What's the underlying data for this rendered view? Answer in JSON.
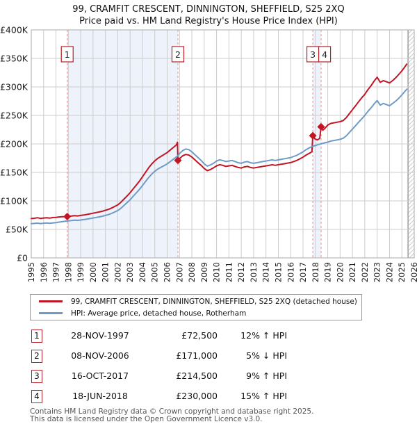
{
  "title": {
    "line1": "99, CRAMFIT CRESCENT, DINNINGTON, SHEFFIELD, S25 2XQ",
    "line2": "Price paid vs. HM Land Registry's House Price Index (HPI)"
  },
  "colors": {
    "property_line": "#c11425",
    "hpi_line": "#6d9bc7",
    "grid": "#cccccc",
    "plot_border": "#aaaaaa",
    "ownership_band": "#eef2fa",
    "marker_dash_line": "#f38b84",
    "marker_box_border": "#b42025",
    "hatch_stroke": "#c6cad0",
    "hatch_edge": "#8e8e8e",
    "axis_text": "#222222"
  },
  "chart_data": {
    "type": "line",
    "title": "Price paid vs. HM Land Registry's House Price Index (HPI)",
    "units": "GBP thousands",
    "x_range": [
      1995,
      2026
    ],
    "y_range": [
      0,
      400
    ],
    "grid": true,
    "legend_position": "bottom",
    "x_ticks": [
      1995,
      1996,
      1997,
      1998,
      1999,
      2000,
      2001,
      2002,
      2003,
      2004,
      2005,
      2006,
      2007,
      2008,
      2009,
      2010,
      2011,
      2012,
      2013,
      2014,
      2015,
      2016,
      2017,
      2018,
      2019,
      2020,
      2021,
      2022,
      2023,
      2024,
      2025,
      2026
    ],
    "y_ticks": [
      0,
      50,
      100,
      150,
      200,
      250,
      300,
      350,
      400
    ],
    "y_tick_labels": [
      "£0",
      "£50K",
      "£100K",
      "£150K",
      "£200K",
      "£250K",
      "£300K",
      "£350K",
      "£400K"
    ],
    "shaded_bands": [
      [
        1997.91,
        2006.87
      ],
      [
        2017.79,
        2018.46
      ]
    ],
    "hatch_from": 2025.5,
    "sale_markers": [
      {
        "label": "1",
        "x": 1997.91,
        "y": 72.5
      },
      {
        "label": "2",
        "x": 2006.87,
        "y": 171
      },
      {
        "label": "3",
        "x": 2017.79,
        "y": 214.5
      },
      {
        "label": "4",
        "x": 2018.46,
        "y": 230
      }
    ],
    "series": [
      {
        "name": "99, CRAMFIT CRESCENT, DINNINGTON, SHEFFIELD, S25 2XQ (detached house)",
        "color_key": "property_line",
        "points": [
          [
            1995,
            69
          ],
          [
            1995.25,
            69.5
          ],
          [
            1995.5,
            70.5
          ],
          [
            1995.75,
            69.3
          ],
          [
            1996,
            70
          ],
          [
            1996.25,
            70.5
          ],
          [
            1996.5,
            69.8
          ],
          [
            1996.75,
            70.8
          ],
          [
            1997,
            71
          ],
          [
            1997.25,
            71.8
          ],
          [
            1997.5,
            72.2
          ],
          [
            1997.91,
            72.5
          ],
          [
            1998.25,
            73.4
          ],
          [
            1998.5,
            74.2
          ],
          [
            1998.75,
            73.7
          ],
          [
            1999,
            74.5
          ],
          [
            1999.25,
            75.3
          ],
          [
            1999.5,
            76.2
          ],
          [
            1999.75,
            77.3
          ],
          [
            2000,
            78.4
          ],
          [
            2000.25,
            79.5
          ],
          [
            2000.5,
            80.6
          ],
          [
            2000.75,
            81.8
          ],
          [
            2001,
            83.5
          ],
          [
            2001.25,
            85.1
          ],
          [
            2001.5,
            87.4
          ],
          [
            2001.75,
            90.2
          ],
          [
            2002,
            93
          ],
          [
            2002.25,
            97.5
          ],
          [
            2002.5,
            103
          ],
          [
            2002.75,
            108.7
          ],
          [
            2003,
            114.3
          ],
          [
            2003.25,
            121
          ],
          [
            2003.5,
            127.7
          ],
          [
            2003.75,
            134.4
          ],
          [
            2004,
            142.3
          ],
          [
            2004.25,
            150.1
          ],
          [
            2004.5,
            158
          ],
          [
            2004.75,
            164.7
          ],
          [
            2005,
            170.3
          ],
          [
            2005.25,
            174.8
          ],
          [
            2005.5,
            178.1
          ],
          [
            2005.75,
            181.5
          ],
          [
            2006,
            184.8
          ],
          [
            2006.25,
            189.3
          ],
          [
            2006.5,
            193.8
          ],
          [
            2006.75,
            198.3
          ],
          [
            2006.84,
            203
          ],
          [
            2006.87,
            171
          ],
          [
            2007,
            174
          ],
          [
            2007.25,
            179
          ],
          [
            2007.5,
            181.5
          ],
          [
            2007.75,
            180.5
          ],
          [
            2008,
            177
          ],
          [
            2008.25,
            172
          ],
          [
            2008.5,
            167
          ],
          [
            2008.75,
            162.5
          ],
          [
            2009,
            157
          ],
          [
            2009.25,
            153
          ],
          [
            2009.5,
            155
          ],
          [
            2009.75,
            158
          ],
          [
            2010,
            161.5
          ],
          [
            2010.25,
            163.5
          ],
          [
            2010.5,
            162.5
          ],
          [
            2010.75,
            160.5
          ],
          [
            2011,
            161.5
          ],
          [
            2011.25,
            162.5
          ],
          [
            2011.5,
            160.5
          ],
          [
            2011.75,
            158.7
          ],
          [
            2012,
            157.7
          ],
          [
            2012.25,
            159.6
          ],
          [
            2012.5,
            160.6
          ],
          [
            2012.75,
            158.7
          ],
          [
            2013,
            157.7
          ],
          [
            2013.25,
            158.7
          ],
          [
            2013.5,
            159.6
          ],
          [
            2013.75,
            160.6
          ],
          [
            2014,
            161.5
          ],
          [
            2014.25,
            162.5
          ],
          [
            2014.5,
            163.4
          ],
          [
            2014.75,
            162.5
          ],
          [
            2015,
            163.4
          ],
          [
            2015.25,
            164.4
          ],
          [
            2015.5,
            165.3
          ],
          [
            2015.75,
            166.3
          ],
          [
            2016,
            167.2
          ],
          [
            2016.25,
            169.1
          ],
          [
            2016.5,
            171
          ],
          [
            2016.75,
            173.9
          ],
          [
            2017,
            176.7
          ],
          [
            2017.25,
            180.5
          ],
          [
            2017.5,
            183.4
          ],
          [
            2017.72,
            186.2
          ],
          [
            2017.79,
            214.5
          ],
          [
            2017.95,
            209
          ],
          [
            2018.15,
            207
          ],
          [
            2018.35,
            209.5
          ],
          [
            2018.46,
            230
          ],
          [
            2018.6,
            224
          ],
          [
            2018.75,
            227
          ],
          [
            2019,
            233
          ],
          [
            2019.25,
            236
          ],
          [
            2019.5,
            237
          ],
          [
            2019.75,
            238
          ],
          [
            2020,
            239
          ],
          [
            2020.25,
            241
          ],
          [
            2020.5,
            246
          ],
          [
            2020.75,
            253
          ],
          [
            2021,
            260
          ],
          [
            2021.25,
            267
          ],
          [
            2021.5,
            274
          ],
          [
            2021.75,
            281
          ],
          [
            2022,
            287
          ],
          [
            2022.25,
            295
          ],
          [
            2022.5,
            302
          ],
          [
            2022.75,
            310
          ],
          [
            2023,
            317
          ],
          [
            2023.25,
            308
          ],
          [
            2023.5,
            311
          ],
          [
            2023.75,
            309
          ],
          [
            2024,
            307
          ],
          [
            2024.25,
            311
          ],
          [
            2024.5,
            316
          ],
          [
            2024.75,
            322
          ],
          [
            2025,
            328
          ],
          [
            2025.2,
            334
          ],
          [
            2025.4,
            340
          ]
        ]
      },
      {
        "name": "HPI: Average price, detached house, Rotherham",
        "color_key": "hpi_line",
        "points": [
          [
            1995,
            60
          ],
          [
            1995.25,
            60.5
          ],
          [
            1995.5,
            61
          ],
          [
            1995.75,
            60.2
          ],
          [
            1996,
            60.8
          ],
          [
            1996.25,
            61.2
          ],
          [
            1996.5,
            60.6
          ],
          [
            1996.75,
            61.5
          ],
          [
            1997,
            62
          ],
          [
            1997.25,
            62.8
          ],
          [
            1997.5,
            63.5
          ],
          [
            1997.75,
            64.3
          ],
          [
            1997.91,
            64.7
          ],
          [
            1998.25,
            65.5
          ],
          [
            1998.5,
            66.2
          ],
          [
            1998.75,
            65.8
          ],
          [
            1999,
            66.5
          ],
          [
            1999.25,
            67.2
          ],
          [
            1999.5,
            68
          ],
          [
            1999.75,
            69
          ],
          [
            2000,
            70
          ],
          [
            2000.25,
            71
          ],
          [
            2000.5,
            72
          ],
          [
            2000.75,
            73
          ],
          [
            2001,
            74.5
          ],
          [
            2001.25,
            76
          ],
          [
            2001.5,
            78
          ],
          [
            2001.75,
            80.5
          ],
          [
            2002,
            83
          ],
          [
            2002.25,
            87
          ],
          [
            2002.5,
            92
          ],
          [
            2002.75,
            97
          ],
          [
            2003,
            102
          ],
          [
            2003.25,
            108
          ],
          [
            2003.5,
            114
          ],
          [
            2003.75,
            120
          ],
          [
            2004,
            127
          ],
          [
            2004.25,
            134
          ],
          [
            2004.5,
            141
          ],
          [
            2004.75,
            147
          ],
          [
            2005,
            152
          ],
          [
            2005.25,
            156
          ],
          [
            2005.5,
            159
          ],
          [
            2005.75,
            162
          ],
          [
            2006,
            165
          ],
          [
            2006.25,
            169
          ],
          [
            2006.5,
            173
          ],
          [
            2006.75,
            177
          ],
          [
            2006.87,
            179.5
          ],
          [
            2007,
            183
          ],
          [
            2007.25,
            188
          ],
          [
            2007.5,
            191
          ],
          [
            2007.75,
            190
          ],
          [
            2008,
            186
          ],
          [
            2008.25,
            181
          ],
          [
            2008.5,
            176
          ],
          [
            2008.75,
            171
          ],
          [
            2009,
            165
          ],
          [
            2009.25,
            161
          ],
          [
            2009.5,
            163
          ],
          [
            2009.75,
            166
          ],
          [
            2010,
            170
          ],
          [
            2010.25,
            172
          ],
          [
            2010.5,
            171
          ],
          [
            2010.75,
            169
          ],
          [
            2011,
            170
          ],
          [
            2011.25,
            171
          ],
          [
            2011.5,
            169
          ],
          [
            2011.75,
            167
          ],
          [
            2012,
            166
          ],
          [
            2012.25,
            168
          ],
          [
            2012.5,
            169
          ],
          [
            2012.75,
            167
          ],
          [
            2013,
            166
          ],
          [
            2013.25,
            167
          ],
          [
            2013.5,
            168
          ],
          [
            2013.75,
            169
          ],
          [
            2014,
            170
          ],
          [
            2014.25,
            171
          ],
          [
            2014.5,
            172
          ],
          [
            2014.75,
            171
          ],
          [
            2015,
            172
          ],
          [
            2015.25,
            173
          ],
          [
            2015.5,
            174
          ],
          [
            2015.75,
            175
          ],
          [
            2016,
            176
          ],
          [
            2016.25,
            178
          ],
          [
            2016.5,
            180
          ],
          [
            2016.75,
            183
          ],
          [
            2017,
            186
          ],
          [
            2017.25,
            190
          ],
          [
            2017.5,
            193
          ],
          [
            2017.79,
            196
          ],
          [
            2018,
            197
          ],
          [
            2018.25,
            199
          ],
          [
            2018.46,
            200
          ],
          [
            2018.75,
            202
          ],
          [
            2019,
            203
          ],
          [
            2019.25,
            205
          ],
          [
            2019.5,
            206
          ],
          [
            2019.75,
            207
          ],
          [
            2020,
            208
          ],
          [
            2020.25,
            210
          ],
          [
            2020.5,
            214
          ],
          [
            2020.75,
            220
          ],
          [
            2021,
            226
          ],
          [
            2021.25,
            232
          ],
          [
            2021.5,
            238
          ],
          [
            2021.75,
            244
          ],
          [
            2022,
            250
          ],
          [
            2022.25,
            257
          ],
          [
            2022.5,
            263
          ],
          [
            2022.75,
            270
          ],
          [
            2023,
            276
          ],
          [
            2023.25,
            268
          ],
          [
            2023.5,
            271
          ],
          [
            2023.75,
            269
          ],
          [
            2024,
            267
          ],
          [
            2024.25,
            271
          ],
          [
            2024.5,
            275
          ],
          [
            2024.75,
            280
          ],
          [
            2025,
            286
          ],
          [
            2025.2,
            291
          ],
          [
            2025.4,
            296
          ]
        ]
      }
    ]
  },
  "legend": {
    "items": [
      {
        "label": "99, CRAMFIT CRESCENT, DINNINGTON, SHEFFIELD, S25 2XQ (detached house)",
        "color_key": "property_line"
      },
      {
        "label": "HPI: Average price, detached house, Rotherham",
        "color_key": "hpi_line"
      }
    ]
  },
  "transactions": [
    {
      "num": "1",
      "date": "28-NOV-1997",
      "price": "£72,500",
      "hpi": "12% ↑ HPI"
    },
    {
      "num": "2",
      "date": "08-NOV-2006",
      "price": "£171,000",
      "hpi": "5% ↓ HPI"
    },
    {
      "num": "3",
      "date": "16-OCT-2017",
      "price": "£214,500",
      "hpi": "9% ↑ HPI"
    },
    {
      "num": "4",
      "date": "18-JUN-2018",
      "price": "£230,000",
      "hpi": "15% ↑ HPI"
    }
  ],
  "footer": {
    "line1": "Contains HM Land Registry data © Crown copyright and database right 2025.",
    "line2": "This data is licensed under the Open Government Licence v3.0."
  }
}
